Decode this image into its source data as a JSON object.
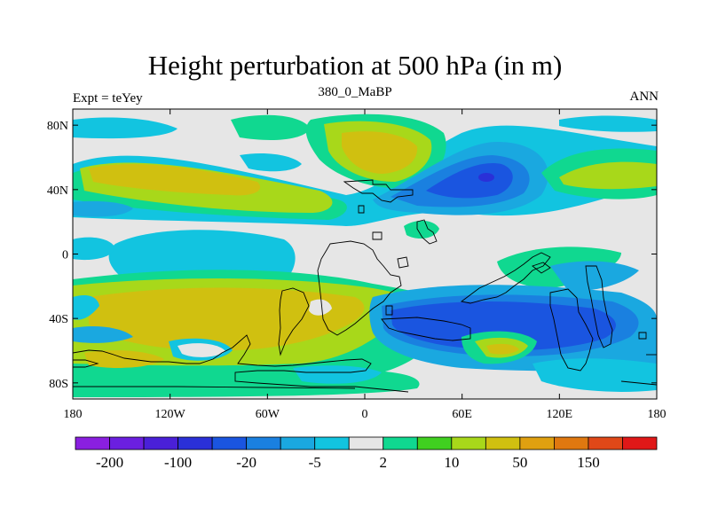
{
  "title": "Height perturbation at 500 hPa (in m)",
  "subtitle_left": "Expt = teYey",
  "subtitle_center": "380_0_MaBP",
  "subtitle_right": "ANN",
  "colors": {
    "background_zero": "#e6e6e6",
    "land_outline": "#000000"
  },
  "chart_data": {
    "type": "heatmap",
    "xlim": [
      -180,
      180
    ],
    "ylim": [
      -90,
      90
    ],
    "x_ticks": [
      {
        "value": -180,
        "label": "180"
      },
      {
        "value": -120,
        "label": "120W"
      },
      {
        "value": -60,
        "label": "60W"
      },
      {
        "value": 0,
        "label": "0"
      },
      {
        "value": 60,
        "label": "60E"
      },
      {
        "value": 120,
        "label": "120E"
      },
      {
        "value": 180,
        "label": "180"
      }
    ],
    "y_ticks": [
      {
        "value": 80,
        "label": "80N"
      },
      {
        "value": 40,
        "label": "40N"
      },
      {
        "value": 0,
        "label": "0"
      },
      {
        "value": -40,
        "label": "40S"
      },
      {
        "value": -80,
        "label": "80S"
      }
    ],
    "colorbar": {
      "colors": [
        "#8a1fe0",
        "#6b1fe0",
        "#4a20d8",
        "#2a30d8",
        "#1a55e0",
        "#1a80e0",
        "#1aa8e0",
        "#12c4e0",
        "#e6e6e6",
        "#10d890",
        "#40d020",
        "#a8d81a",
        "#d0c010",
        "#e0a010",
        "#e07810",
        "#e04818",
        "#e01818"
      ],
      "tick_labels": [
        "-200",
        "-100",
        "-20",
        "-5",
        "2",
        "10",
        "50",
        "150"
      ]
    },
    "blobs": [
      {
        "lon": -95,
        "lat": 50,
        "rx": 75,
        "ry": 18,
        "value": 60
      },
      {
        "lon": -60,
        "lat": 37,
        "rx": 30,
        "ry": 8,
        "value": 50
      },
      {
        "lon": 10,
        "lat": 55,
        "rx": 32,
        "ry": 22,
        "value": 60
      },
      {
        "lon": 70,
        "lat": 45,
        "rx": 38,
        "ry": 18,
        "value": -25
      },
      {
        "lon": 75,
        "lat": 45,
        "rx": 8,
        "ry": 4,
        "value": -120
      },
      {
        "lon": 145,
        "lat": 45,
        "rx": 30,
        "ry": 18,
        "value": 20
      },
      {
        "lon": -100,
        "lat": 2,
        "rx": 45,
        "ry": 18,
        "value": -5
      },
      {
        "lon": -20,
        "lat": -40,
        "rx": 80,
        "ry": 22,
        "value": 50
      },
      {
        "lon": 110,
        "lat": -45,
        "rx": 75,
        "ry": 15,
        "value": -25
      },
      {
        "lon": 90,
        "lat": -60,
        "rx": 20,
        "ry": 10,
        "value": 40
      },
      {
        "lon": -140,
        "lat": -65,
        "rx": 25,
        "ry": 8,
        "value": 60
      }
    ]
  }
}
